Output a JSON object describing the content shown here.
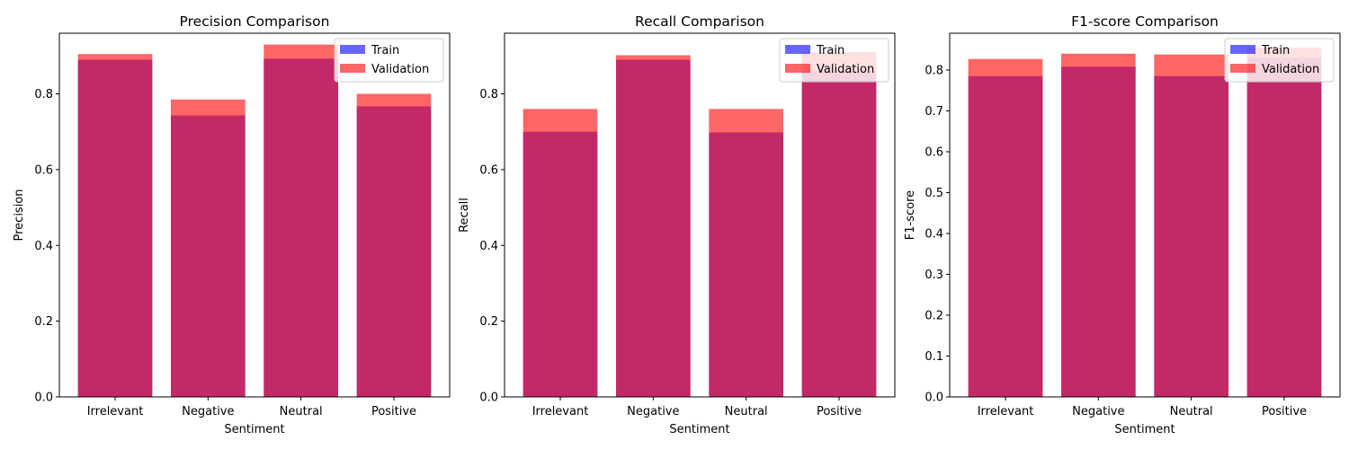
{
  "chart_data": [
    {
      "type": "bar",
      "title": "Precision Comparison",
      "xlabel": "Sentiment",
      "ylabel": "Precision",
      "categories": [
        "Irrelevant",
        "Negative",
        "Neutral",
        "Positive"
      ],
      "ylim": [
        0,
        0.96
      ],
      "yticks": [
        0.0,
        0.2,
        0.4,
        0.6,
        0.8
      ],
      "ytick_labels": [
        "0.0",
        "0.2",
        "0.4",
        "0.6",
        "0.8"
      ],
      "series": [
        {
          "name": "Train",
          "color": "#0000ff",
          "alpha": 0.6,
          "values": [
            0.89,
            0.743,
            0.893,
            0.767
          ]
        },
        {
          "name": "Validation",
          "color": "#ff0000",
          "alpha": 0.6,
          "values": [
            0.905,
            0.785,
            0.93,
            0.8
          ]
        }
      ],
      "legend": "top-right"
    },
    {
      "type": "bar",
      "title": "Recall Comparison",
      "xlabel": "Sentiment",
      "ylabel": "Recall",
      "categories": [
        "Irrelevant",
        "Negative",
        "Neutral",
        "Positive"
      ],
      "ylim": [
        0,
        0.96
      ],
      "yticks": [
        0.0,
        0.2,
        0.4,
        0.6,
        0.8
      ],
      "ytick_labels": [
        "0.0",
        "0.2",
        "0.4",
        "0.6",
        "0.8"
      ],
      "series": [
        {
          "name": "Train",
          "color": "#0000ff",
          "alpha": 0.6,
          "values": [
            0.7,
            0.89,
            0.698,
            0.86
          ]
        },
        {
          "name": "Validation",
          "color": "#ff0000",
          "alpha": 0.6,
          "values": [
            0.76,
            0.902,
            0.76,
            0.91
          ]
        }
      ],
      "legend": "top-right"
    },
    {
      "type": "bar",
      "title": "F1-score Comparison",
      "xlabel": "Sentiment",
      "ylabel": "F1-score",
      "categories": [
        "Irrelevant",
        "Negative",
        "Neutral",
        "Positive"
      ],
      "ylim": [
        0,
        0.89
      ],
      "yticks": [
        0.0,
        0.1,
        0.2,
        0.3,
        0.4,
        0.5,
        0.6,
        0.7,
        0.8
      ],
      "ytick_labels": [
        "0.0",
        "0.1",
        "0.2",
        "0.3",
        "0.4",
        "0.5",
        "0.6",
        "0.7",
        "0.8"
      ],
      "series": [
        {
          "name": "Train",
          "color": "#0000ff",
          "alpha": 0.6,
          "values": [
            0.785,
            0.808,
            0.785,
            0.83
          ]
        },
        {
          "name": "Validation",
          "color": "#ff0000",
          "alpha": 0.6,
          "values": [
            0.827,
            0.84,
            0.838,
            0.855
          ]
        }
      ],
      "legend": "top-right"
    }
  ]
}
